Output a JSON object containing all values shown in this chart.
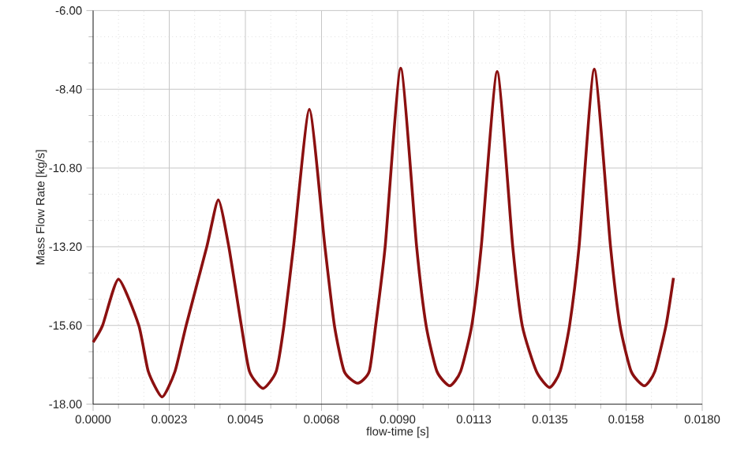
{
  "chart_data": {
    "type": "line",
    "xlabel": "flow-time [s]",
    "ylabel": "Mass Flow Rate [kg/s]",
    "x": [
      0,
      0.00028,
      0.00075,
      0.00135,
      0.00163,
      0.00204,
      0.00242,
      0.00275,
      0.00336,
      0.0037,
      0.00401,
      0.00438,
      0.00462,
      0.00502,
      0.00541,
      0.00564,
      0.00592,
      0.00639,
      0.00685,
      0.00713,
      0.00742,
      0.00782,
      0.00816,
      0.00835,
      0.00863,
      0.00909,
      0.00956,
      0.00984,
      0.01016,
      0.01054,
      0.01086,
      0.01119,
      0.01147,
      0.01194,
      0.0124,
      0.01268,
      0.0131,
      0.01349,
      0.0138,
      0.01408,
      0.01436,
      0.01481,
      0.01529,
      0.01557,
      0.0159,
      0.01629,
      0.0166,
      0.01693,
      0.01715
    ],
    "series": [
      {
        "color": "#8b1010",
        "values": [
          -16.11,
          -15.6,
          -14.19,
          -15.6,
          -17.0,
          -17.78,
          -17.0,
          -15.6,
          -13.2,
          -11.77,
          -13.2,
          -15.6,
          -17.0,
          -17.52,
          -17.0,
          -15.6,
          -13.2,
          -9.01,
          -13.2,
          -15.6,
          -17.0,
          -17.36,
          -17.0,
          -15.6,
          -13.2,
          -7.76,
          -13.2,
          -15.6,
          -17.0,
          -17.44,
          -17.0,
          -15.6,
          -13.2,
          -7.86,
          -13.2,
          -15.6,
          -17.0,
          -17.49,
          -17.0,
          -15.6,
          -13.2,
          -7.79,
          -13.2,
          -15.6,
          -17.0,
          -17.44,
          -17.0,
          -15.6,
          -14.15
        ]
      }
    ],
    "xlim": [
      0,
      0.018
    ],
    "ylim": [
      -18,
      -6
    ],
    "xticks": [
      {
        "value": 0,
        "label": "0.0000"
      },
      {
        "value": 0.00225,
        "label": "0.0023"
      },
      {
        "value": 0.0045,
        "label": "0.0045"
      },
      {
        "value": 0.00675,
        "label": "0.0068"
      },
      {
        "value": 0.009,
        "label": "0.0090"
      },
      {
        "value": 0.01125,
        "label": "0.0113"
      },
      {
        "value": 0.0135,
        "label": "0.0135"
      },
      {
        "value": 0.01575,
        "label": "0.0158"
      },
      {
        "value": 0.018,
        "label": "0.0180"
      }
    ],
    "yticks": [
      {
        "value": -18,
        "label": "-18.00"
      },
      {
        "value": -15.6,
        "label": "-15.60"
      },
      {
        "value": -13.2,
        "label": "-13.20"
      },
      {
        "value": -10.8,
        "label": "-10.80"
      },
      {
        "value": -8.4,
        "label": "-8.40"
      },
      {
        "value": -6,
        "label": "-6.00"
      }
    ],
    "grid": true,
    "marker": "none",
    "line_style": "solid"
  }
}
